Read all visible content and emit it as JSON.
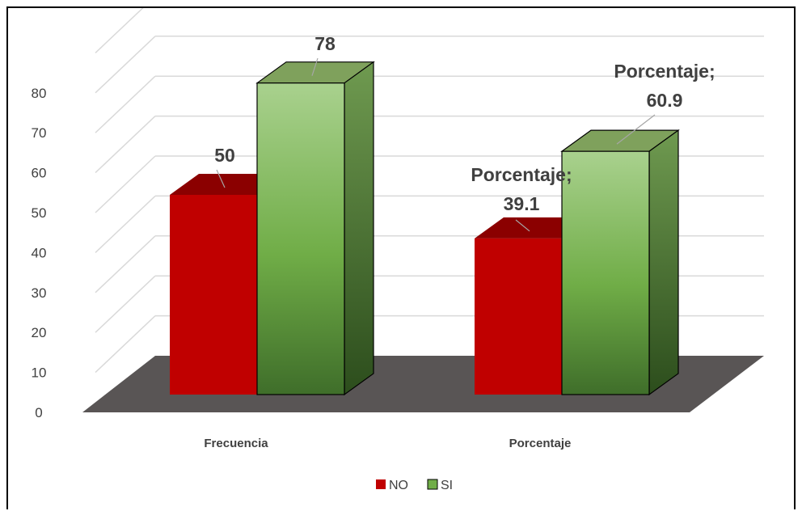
{
  "chart_data": {
    "type": "bar",
    "categories": [
      "Frecuencia",
      "Porcentaje"
    ],
    "series": [
      {
        "name": "NO",
        "values": [
          50,
          39.1
        ],
        "color": "#C00000"
      },
      {
        "name": "SI",
        "values": [
          78,
          60.9
        ],
        "color": "#70AD47"
      }
    ],
    "data_labels": [
      [
        "50",
        "Porcentaje;\n39.1"
      ],
      [
        "78",
        "Porcentaje;\n60.9"
      ]
    ],
    "yticks": [
      0,
      10,
      20,
      30,
      40,
      50,
      60,
      70,
      80
    ],
    "ylim": [
      0,
      90
    ],
    "grid": true,
    "legend": "bottom",
    "style": "3d-clustered-column",
    "colors": {
      "floor": "#595555",
      "gridline": "#d9d9d9",
      "no_top": "#8b0000",
      "si_top": "#7fa15c",
      "si_side": "#4f7a35",
      "text": "#404040"
    }
  }
}
